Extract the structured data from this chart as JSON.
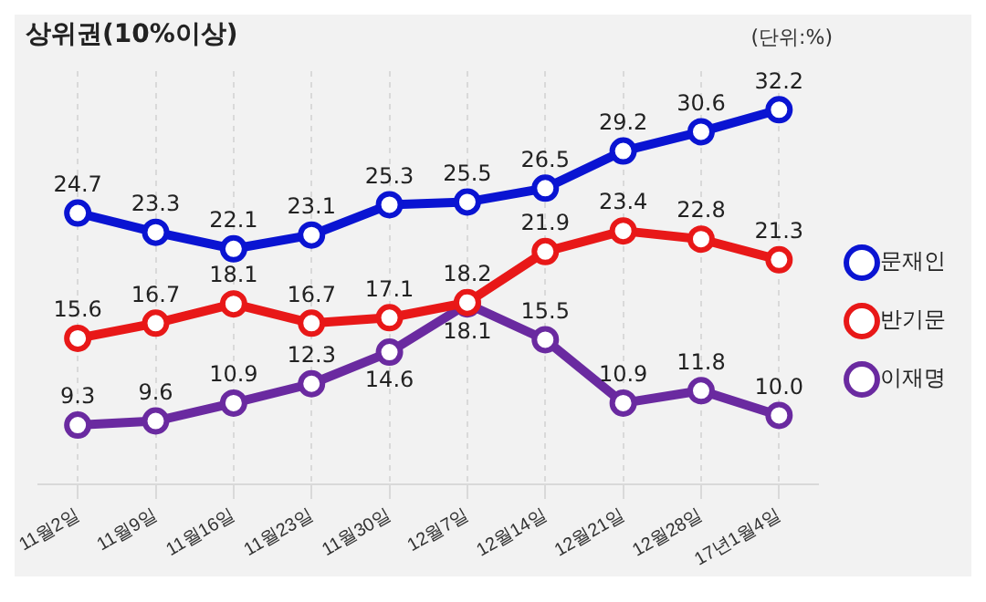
{
  "chart_data": {
    "type": "line",
    "title": "상위권(10%이상)",
    "annotations": [
      "(단위:%)"
    ],
    "categories": [
      "11월2일",
      "11월9일",
      "11월16일",
      "11월23일",
      "11월30일",
      "12월7일",
      "12월14일",
      "12월21일",
      "12월28일",
      "17년1월4일"
    ],
    "series": [
      {
        "name": "문재인",
        "color": "#0a14d2",
        "values": [
          24.7,
          23.3,
          22.1,
          23.1,
          25.3,
          25.5,
          26.5,
          29.2,
          30.6,
          32.2
        ]
      },
      {
        "name": "반기문",
        "color": "#e81818",
        "values": [
          15.6,
          16.7,
          18.1,
          16.7,
          17.1,
          18.2,
          21.9,
          23.4,
          22.8,
          21.3
        ]
      },
      {
        "name": "이재명",
        "color": "#6a2aa0",
        "values": [
          9.3,
          9.6,
          10.9,
          12.3,
          14.6,
          18.1,
          15.5,
          10.9,
          11.8,
          10.0
        ],
        "value_labels": [
          "9.3",
          "9.6",
          "10.9",
          "12.3",
          "14.6",
          "18.1",
          "15.5",
          "10.9",
          "11.8",
          "10.0"
        ]
      }
    ],
    "data_labels": true,
    "marker": "circle",
    "line_style": "solid",
    "grid": "x",
    "legend": "right"
  }
}
